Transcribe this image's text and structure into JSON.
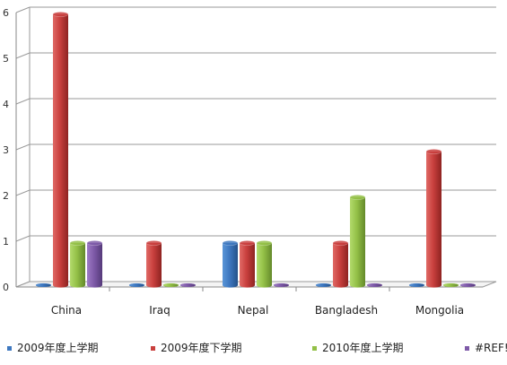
{
  "chart_data": {
    "type": "bar",
    "categories": [
      "China",
      "Iraq",
      "Nepal",
      "Bangladesh",
      "Mongolia"
    ],
    "series": [
      {
        "name": "2009年度上学期",
        "color": "#3e78c0",
        "values": [
          0,
          0,
          1,
          0,
          0
        ]
      },
      {
        "name": "2009年度下学期",
        "color": "#c9403e",
        "values": [
          6,
          1,
          1,
          1,
          3
        ]
      },
      {
        "name": "2010年度上学期",
        "color": "#93c047",
        "values": [
          1,
          0,
          1,
          2,
          0
        ]
      },
      {
        "name": "#REF!",
        "color": "#7e5aa8",
        "values": [
          1,
          0,
          0,
          0,
          0
        ]
      }
    ],
    "yticks": [
      "0",
      "1",
      "2",
      "3",
      "4",
      "5",
      "6"
    ],
    "ylim": [
      0,
      6
    ],
    "grid": true,
    "legend_position": "bottom"
  }
}
